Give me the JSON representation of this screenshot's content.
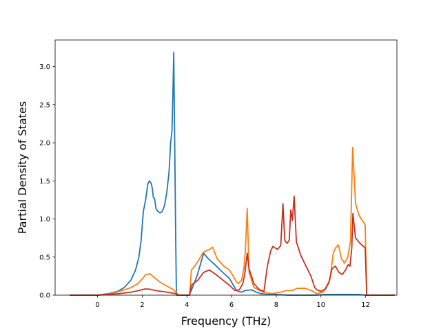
{
  "chart_data": {
    "type": "line",
    "title": "",
    "xlabel": "Frequency (THz)",
    "ylabel": "Partial Density of States",
    "xlim": [
      -1.9,
      13.4
    ],
    "ylim": [
      0.0,
      3.35
    ],
    "xticks": [
      {
        "value": 0,
        "label": "0"
      },
      {
        "value": 2,
        "label": "2"
      },
      {
        "value": 4,
        "label": "4"
      },
      {
        "value": 6,
        "label": "6"
      },
      {
        "value": 8,
        "label": "8"
      },
      {
        "value": 10,
        "label": "10"
      },
      {
        "value": 12,
        "label": "12"
      }
    ],
    "yticks": [
      {
        "value": 0.0,
        "label": "0.0"
      },
      {
        "value": 0.5,
        "label": "0.5"
      },
      {
        "value": 1.0,
        "label": "1.0"
      },
      {
        "value": 1.5,
        "label": "1.5"
      },
      {
        "value": 2.0,
        "label": "2.0"
      },
      {
        "value": 2.5,
        "label": "2.5"
      },
      {
        "value": 3.0,
        "label": "3.0"
      }
    ],
    "grid": false,
    "legend": "none",
    "series": [
      {
        "color": "#1f77b4",
        "points": [
          [
            -1.25,
            0
          ],
          [
            0,
            0
          ],
          [
            0.5,
            0.02
          ],
          [
            0.9,
            0.05
          ],
          [
            1.2,
            0.1
          ],
          [
            1.5,
            0.2
          ],
          [
            1.7,
            0.33
          ],
          [
            1.85,
            0.5
          ],
          [
            1.95,
            0.72
          ],
          [
            2.05,
            1.1
          ],
          [
            2.15,
            1.25
          ],
          [
            2.25,
            1.46
          ],
          [
            2.32,
            1.5
          ],
          [
            2.4,
            1.47
          ],
          [
            2.45,
            1.4
          ],
          [
            2.5,
            1.28
          ],
          [
            2.55,
            1.27
          ],
          [
            2.62,
            1.13
          ],
          [
            2.7,
            1.1
          ],
          [
            2.8,
            1.08
          ],
          [
            2.9,
            1.1
          ],
          [
            3.0,
            1.18
          ],
          [
            3.1,
            1.35
          ],
          [
            3.2,
            1.62
          ],
          [
            3.27,
            2.0
          ],
          [
            3.33,
            2.15
          ],
          [
            3.37,
            2.6
          ],
          [
            3.41,
            3.19
          ],
          [
            3.45,
            2.1
          ],
          [
            3.5,
            0.7
          ],
          [
            3.53,
            0
          ],
          [
            4.1,
            0
          ],
          [
            4.25,
            0.1
          ],
          [
            4.45,
            0.25
          ],
          [
            4.6,
            0.4
          ],
          [
            4.72,
            0.52
          ],
          [
            4.75,
            0.55
          ],
          [
            4.95,
            0.48
          ],
          [
            5.25,
            0.4
          ],
          [
            5.6,
            0.3
          ],
          [
            5.9,
            0.22
          ],
          [
            6.1,
            0.12
          ],
          [
            6.2,
            0.07
          ],
          [
            6.3,
            0.05
          ],
          [
            6.45,
            0.04
          ],
          [
            6.6,
            0.06
          ],
          [
            6.9,
            0.07
          ],
          [
            7.1,
            0.04
          ],
          [
            7.3,
            0.02
          ],
          [
            7.6,
            0.01
          ],
          [
            8.0,
            0.01
          ],
          [
            8.5,
            0
          ],
          [
            9.8,
            0
          ],
          [
            10.2,
            0.01
          ],
          [
            11.0,
            0.01
          ],
          [
            11.35,
            0.01
          ],
          [
            11.7,
            0.01
          ],
          [
            12.0,
            0
          ],
          [
            13.3,
            0
          ]
        ]
      },
      {
        "color": "#ff7f0e",
        "points": [
          [
            -1.25,
            0
          ],
          [
            0,
            0
          ],
          [
            0.6,
            0.02
          ],
          [
            1.0,
            0.05
          ],
          [
            1.5,
            0.1
          ],
          [
            1.8,
            0.15
          ],
          [
            2.05,
            0.23
          ],
          [
            2.15,
            0.27
          ],
          [
            2.35,
            0.28
          ],
          [
            2.5,
            0.24
          ],
          [
            2.8,
            0.17
          ],
          [
            3.1,
            0.12
          ],
          [
            3.35,
            0.08
          ],
          [
            3.55,
            0.03
          ],
          [
            3.6,
            0
          ],
          [
            4.12,
            0
          ],
          [
            4.2,
            0.33
          ],
          [
            4.4,
            0.4
          ],
          [
            4.65,
            0.52
          ],
          [
            4.72,
            0.56
          ],
          [
            5.0,
            0.6
          ],
          [
            5.15,
            0.63
          ],
          [
            5.35,
            0.48
          ],
          [
            5.65,
            0.38
          ],
          [
            5.9,
            0.33
          ],
          [
            6.05,
            0.26
          ],
          [
            6.2,
            0.18
          ],
          [
            6.3,
            0.15
          ],
          [
            6.45,
            0.2
          ],
          [
            6.55,
            0.35
          ],
          [
            6.62,
            0.6
          ],
          [
            6.7,
            1.14
          ],
          [
            6.78,
            0.3
          ],
          [
            7.0,
            0.1
          ],
          [
            7.4,
            0.04
          ],
          [
            7.8,
            0.02
          ],
          [
            8.2,
            0.04
          ],
          [
            8.45,
            0.06
          ],
          [
            8.7,
            0.06
          ],
          [
            8.95,
            0.09
          ],
          [
            9.3,
            0.09
          ],
          [
            9.65,
            0.05
          ],
          [
            9.8,
            0.02
          ],
          [
            10.1,
            0.04
          ],
          [
            10.4,
            0.2
          ],
          [
            10.55,
            0.55
          ],
          [
            10.65,
            0.62
          ],
          [
            10.78,
            0.66
          ],
          [
            10.92,
            0.48
          ],
          [
            11.05,
            0.42
          ],
          [
            11.2,
            0.5
          ],
          [
            11.32,
            0.7
          ],
          [
            11.42,
            1.94
          ],
          [
            11.55,
            1.2
          ],
          [
            11.7,
            1.05
          ],
          [
            11.85,
            0.98
          ],
          [
            11.98,
            0.92
          ],
          [
            12.05,
            0
          ],
          [
            13.3,
            0
          ]
        ]
      },
      {
        "color": "#c7301f",
        "points": [
          [
            -1.25,
            0
          ],
          [
            0,
            0
          ],
          [
            1.0,
            0.02
          ],
          [
            1.5,
            0.04
          ],
          [
            1.85,
            0.06
          ],
          [
            2.1,
            0.08
          ],
          [
            2.3,
            0.08
          ],
          [
            2.6,
            0.06
          ],
          [
            3.1,
            0.04
          ],
          [
            3.5,
            0.02
          ],
          [
            3.6,
            0
          ],
          [
            4.12,
            0
          ],
          [
            4.2,
            0.13
          ],
          [
            4.5,
            0.2
          ],
          [
            4.75,
            0.3
          ],
          [
            5.0,
            0.33
          ],
          [
            5.3,
            0.27
          ],
          [
            5.6,
            0.2
          ],
          [
            5.9,
            0.13
          ],
          [
            6.15,
            0.06
          ],
          [
            6.35,
            0.07
          ],
          [
            6.5,
            0.15
          ],
          [
            6.6,
            0.3
          ],
          [
            6.7,
            0.55
          ],
          [
            6.78,
            0.35
          ],
          [
            7.0,
            0.15
          ],
          [
            7.25,
            0.07
          ],
          [
            7.45,
            0.05
          ],
          [
            7.6,
            0.38
          ],
          [
            7.75,
            0.58
          ],
          [
            7.85,
            0.64
          ],
          [
            8.05,
            0.6
          ],
          [
            8.2,
            0.65
          ],
          [
            8.3,
            1.2
          ],
          [
            8.38,
            0.72
          ],
          [
            8.48,
            0.68
          ],
          [
            8.58,
            0.72
          ],
          [
            8.65,
            1.12
          ],
          [
            8.72,
            0.98
          ],
          [
            8.8,
            1.3
          ],
          [
            8.9,
            0.7
          ],
          [
            9.1,
            0.52
          ],
          [
            9.3,
            0.4
          ],
          [
            9.55,
            0.25
          ],
          [
            9.72,
            0.1
          ],
          [
            9.82,
            0.07
          ],
          [
            10.0,
            0.05
          ],
          [
            10.2,
            0.08
          ],
          [
            10.35,
            0.16
          ],
          [
            10.5,
            0.35
          ],
          [
            10.65,
            0.38
          ],
          [
            10.8,
            0.3
          ],
          [
            10.95,
            0.27
          ],
          [
            11.1,
            0.33
          ],
          [
            11.22,
            0.4
          ],
          [
            11.3,
            0.38
          ],
          [
            11.38,
            0.62
          ],
          [
            11.43,
            1.07
          ],
          [
            11.55,
            0.75
          ],
          [
            11.75,
            0.68
          ],
          [
            11.98,
            0.62
          ],
          [
            12.05,
            0
          ],
          [
            13.3,
            0
          ]
        ]
      }
    ]
  }
}
